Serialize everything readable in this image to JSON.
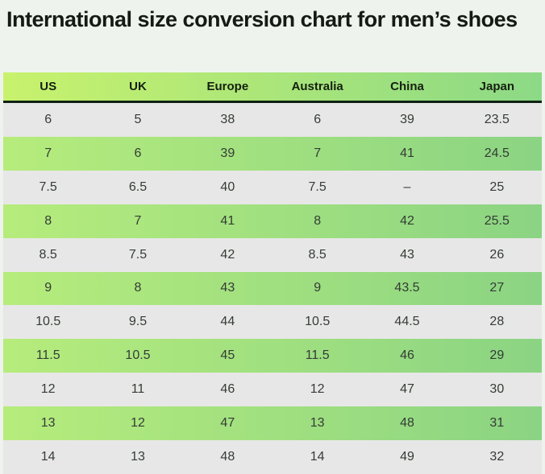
{
  "chart_data": {
    "type": "table",
    "title": "International size conversion chart for men’s shoes",
    "columns": [
      "US",
      "UK",
      "Europe",
      "Australia",
      "China",
      "Japan"
    ],
    "rows": [
      {
        "variant": "gray",
        "cells": [
          "6",
          "5",
          "38",
          "6",
          "39",
          "23.5"
        ]
      },
      {
        "variant": "green",
        "cells": [
          "7",
          "6",
          "39",
          "7",
          "41",
          "24.5"
        ]
      },
      {
        "variant": "gray",
        "cells": [
          "7.5",
          "6.5",
          "40",
          "7.5",
          "–",
          "25"
        ]
      },
      {
        "variant": "green",
        "cells": [
          "8",
          "7",
          "41",
          "8",
          "42",
          "25.5"
        ]
      },
      {
        "variant": "gray",
        "cells": [
          "8.5",
          "7.5",
          "42",
          "8.5",
          "43",
          "26"
        ]
      },
      {
        "variant": "green",
        "cells": [
          "9",
          "8",
          "43",
          "9",
          "43.5",
          "27"
        ]
      },
      {
        "variant": "gray",
        "cells": [
          "10.5",
          "9.5",
          "44",
          "10.5",
          "44.5",
          "28"
        ]
      },
      {
        "variant": "green",
        "cells": [
          "11.5",
          "10.5",
          "45",
          "11.5",
          "46",
          "29"
        ]
      },
      {
        "variant": "gray",
        "cells": [
          "12",
          "11",
          "46",
          "12",
          "47",
          "30"
        ]
      },
      {
        "variant": "green",
        "cells": [
          "13",
          "12",
          "47",
          "13",
          "48",
          "31"
        ]
      },
      {
        "variant": "gray",
        "cells": [
          "14",
          "13",
          "48",
          "14",
          "49",
          "32"
        ]
      }
    ],
    "layout": {
      "grid": false,
      "header_position": "top",
      "row_striping": "alternating gray / green-gradient"
    }
  },
  "colors": {
    "page_background": "#eff3ed",
    "header_gradient_start": "#c8f26d",
    "header_gradient_end": "#8cd986",
    "green_row_gradient_start": "#b6ec7c",
    "green_row_gradient_end": "#8bd483",
    "gray_row": "#e8e7e7",
    "header_bottom_border": "#0e2113",
    "cell_text": "#343c36",
    "header_text": "#15200f",
    "title_text": "#141b14"
  }
}
